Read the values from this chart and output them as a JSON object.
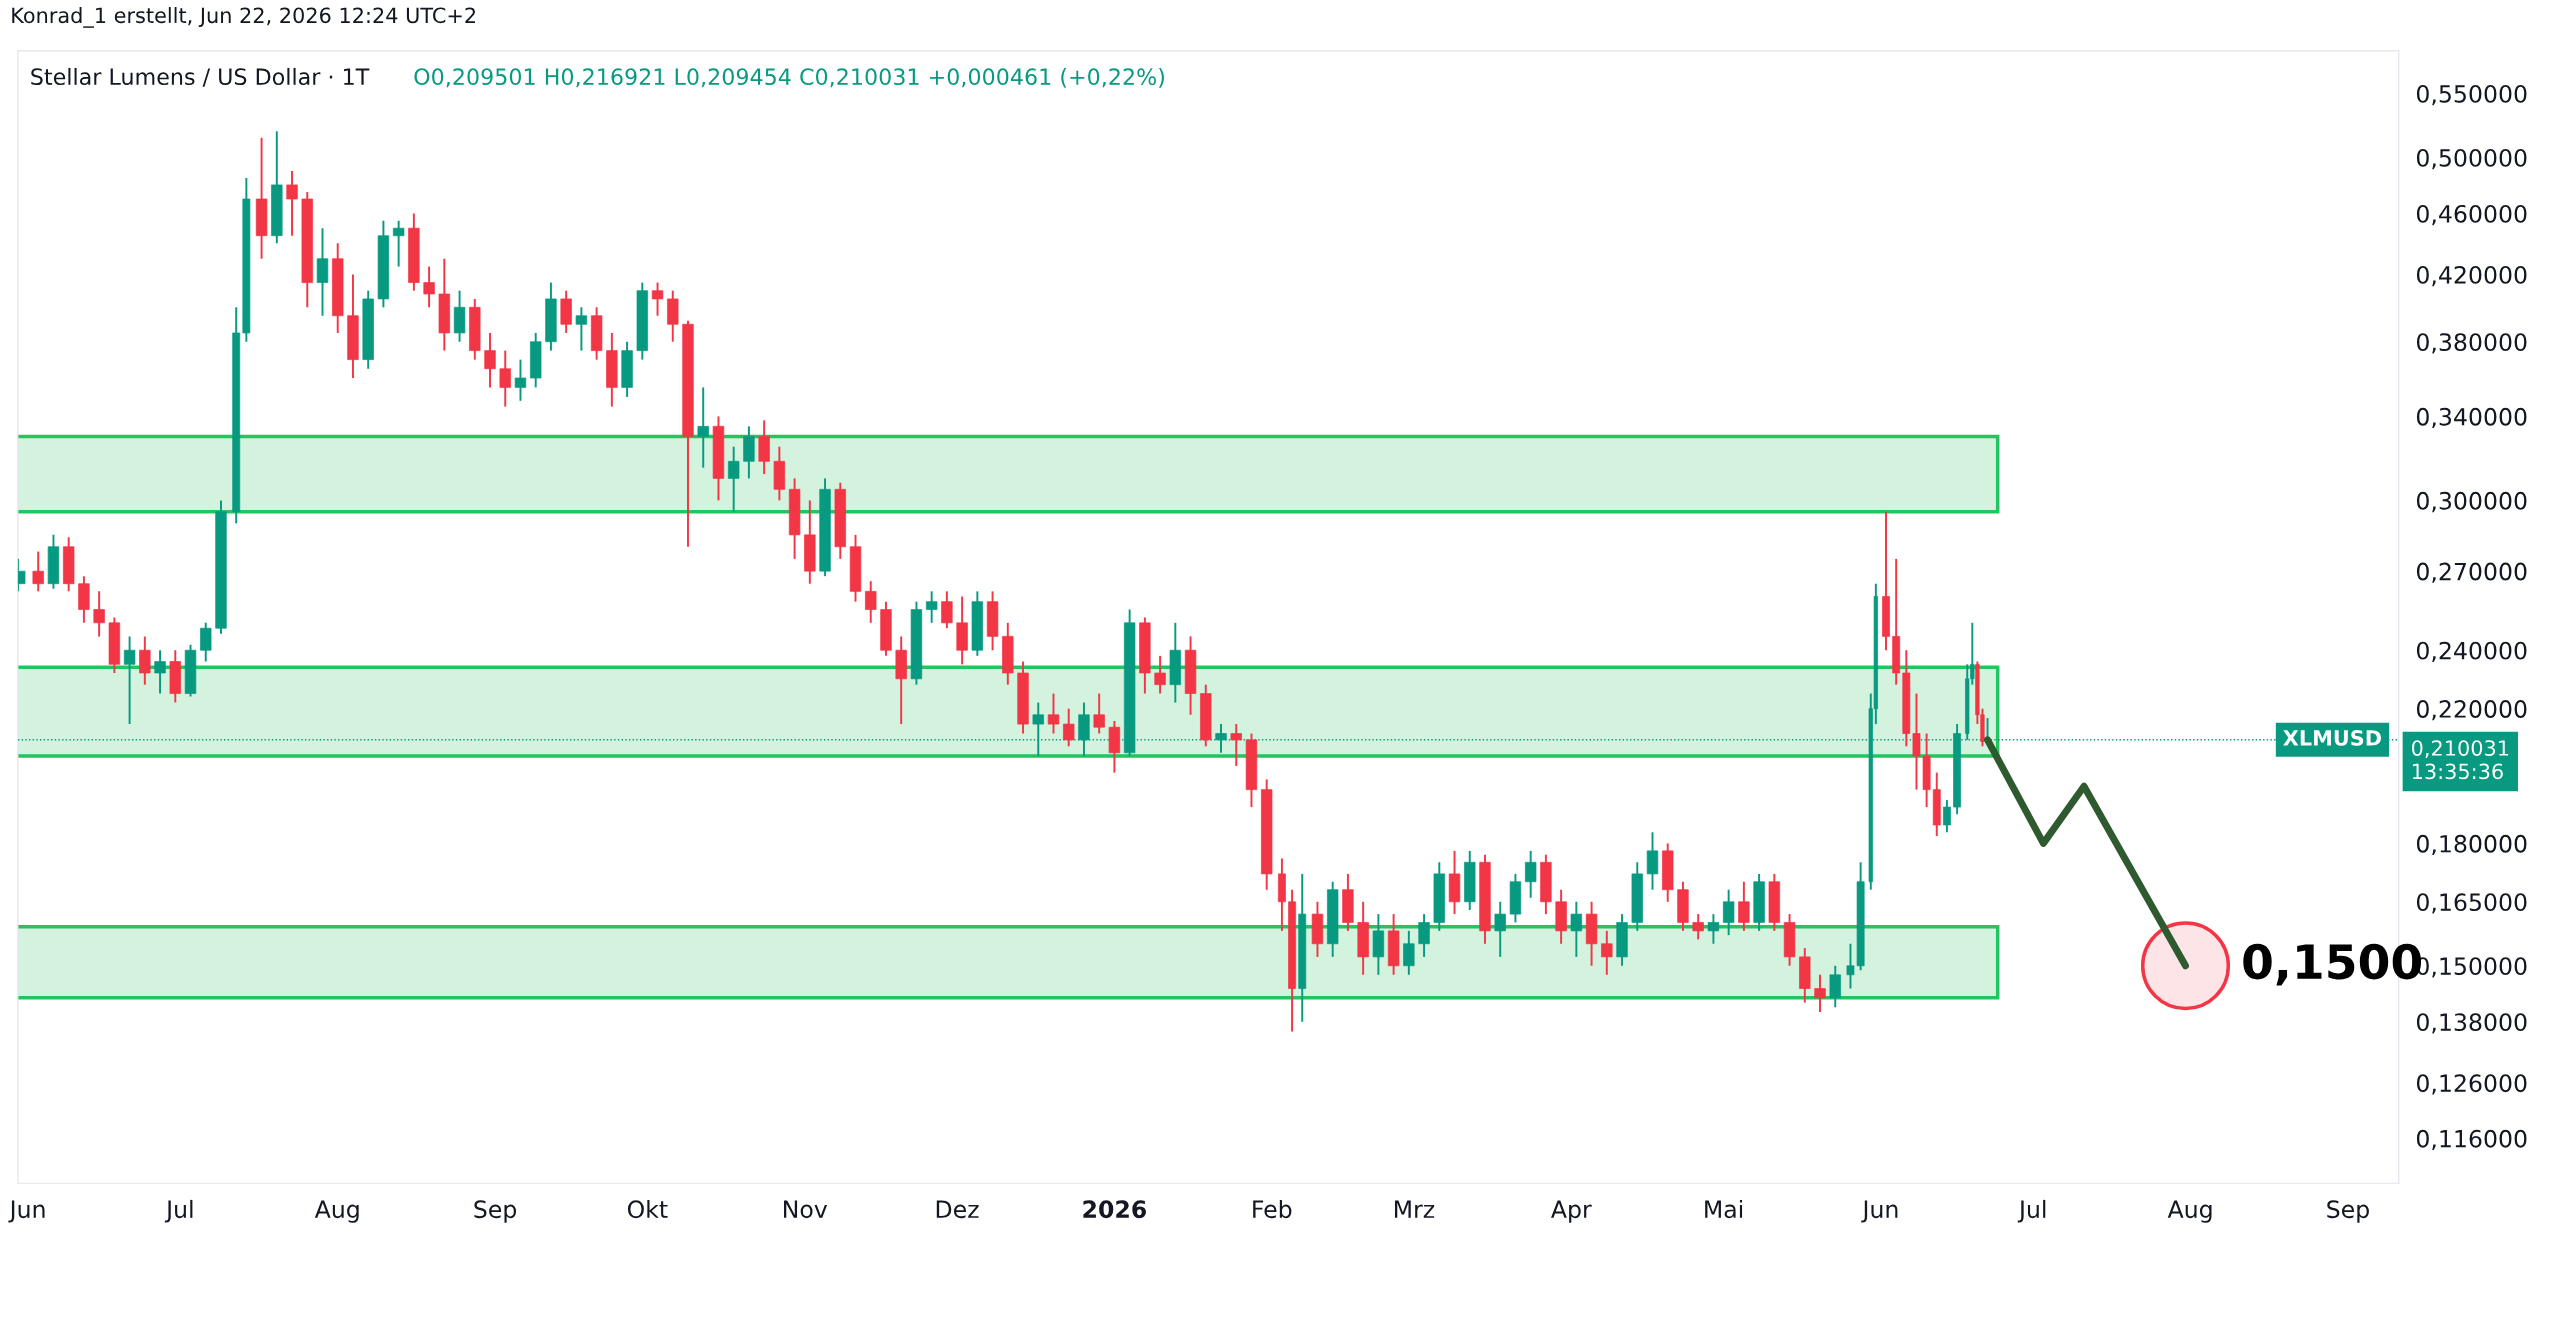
{
  "chart_data": {
    "type": "candlestick",
    "title": "Stellar Lumens / US Dollar · 1T",
    "subtitle": "O0,209501 H0,216921 L0,209454 C0,210031 +0,000461 (+0,22%)",
    "annotations": [
      "Konrad_1 erstellt, Jun 22, 2026 12:24 UTC+2",
      {
        "text": "0,1500",
        "x": "2026-07-31",
        "y": 0.15
      },
      "0,210031\n13:35:36"
    ],
    "log": true,
    "x": [
      "2025-05-30",
      "2025-06-03",
      "2025-06-06",
      "2025-06-09",
      "2025-06-12",
      "2025-06-15",
      "2025-06-18",
      "2025-06-21",
      "2025-06-24",
      "2025-06-27",
      "2025-06-30",
      "2025-07-03",
      "2025-07-06",
      "2025-07-09",
      "2025-07-12",
      "2025-07-14",
      "2025-07-17",
      "2025-07-20",
      "2025-07-23",
      "2025-07-26",
      "2025-07-29",
      "2025-08-01",
      "2025-08-04",
      "2025-08-07",
      "2025-08-10",
      "2025-08-13",
      "2025-08-16",
      "2025-08-19",
      "2025-08-22",
      "2025-08-25",
      "2025-08-28",
      "2025-08-31",
      "2025-09-03",
      "2025-09-06",
      "2025-09-09",
      "2025-09-12",
      "2025-09-15",
      "2025-09-18",
      "2025-09-21",
      "2025-09-24",
      "2025-09-27",
      "2025-09-30",
      "2025-10-03",
      "2025-10-06",
      "2025-10-09",
      "2025-10-12",
      "2025-10-15",
      "2025-10-18",
      "2025-10-21",
      "2025-10-24",
      "2025-10-27",
      "2025-10-30",
      "2025-11-02",
      "2025-11-05",
      "2025-11-08",
      "2025-11-11",
      "2025-11-14",
      "2025-11-17",
      "2025-11-20",
      "2025-11-23",
      "2025-11-26",
      "2025-11-29",
      "2025-12-02",
      "2025-12-05",
      "2025-12-08",
      "2025-12-11",
      "2025-12-14",
      "2025-12-17",
      "2025-12-20",
      "2025-12-23",
      "2025-12-26",
      "2025-12-29",
      "2026-01-01",
      "2026-01-04",
      "2026-01-07",
      "2026-01-10",
      "2026-01-13",
      "2026-01-16",
      "2026-01-19",
      "2026-01-22",
      "2026-01-25",
      "2026-01-28",
      "2026-01-31",
      "2026-02-03",
      "2026-02-05",
      "2026-02-07",
      "2026-02-10",
      "2026-02-13",
      "2026-02-16",
      "2026-02-19",
      "2026-02-22",
      "2026-02-25",
      "2026-02-28",
      "2026-03-03",
      "2026-03-06",
      "2026-03-09",
      "2026-03-12",
      "2026-03-15",
      "2026-03-18",
      "2026-03-21",
      "2026-03-24",
      "2026-03-27",
      "2026-03-30",
      "2026-04-02",
      "2026-04-05",
      "2026-04-08",
      "2026-04-11",
      "2026-04-14",
      "2026-04-17",
      "2026-04-20",
      "2026-04-23",
      "2026-04-26",
      "2026-04-29",
      "2026-05-02",
      "2026-05-05",
      "2026-05-08",
      "2026-05-11",
      "2026-05-14",
      "2026-05-17",
      "2026-05-20",
      "2026-05-23",
      "2026-05-26",
      "2026-05-28",
      "2026-05-30",
      "2026-05-31",
      "2026-06-02",
      "2026-06-04",
      "2026-06-06",
      "2026-06-08",
      "2026-06-10",
      "2026-06-12",
      "2026-06-14",
      "2026-06-16",
      "2026-06-18",
      "2026-06-19",
      "2026-06-20",
      "2026-06-21",
      "2026-06-22"
    ],
    "ohlc": [
      [
        0.265,
        0.275,
        0.262,
        0.27
      ],
      [
        0.27,
        0.278,
        0.262,
        0.265
      ],
      [
        0.265,
        0.285,
        0.263,
        0.28
      ],
      [
        0.28,
        0.284,
        0.262,
        0.265
      ],
      [
        0.265,
        0.268,
        0.25,
        0.255
      ],
      [
        0.255,
        0.262,
        0.245,
        0.25
      ],
      [
        0.25,
        0.252,
        0.232,
        0.235
      ],
      [
        0.235,
        0.245,
        0.215,
        0.24
      ],
      [
        0.24,
        0.245,
        0.228,
        0.232
      ],
      [
        0.232,
        0.24,
        0.225,
        0.236
      ],
      [
        0.236,
        0.24,
        0.222,
        0.225
      ],
      [
        0.225,
        0.242,
        0.224,
        0.24
      ],
      [
        0.24,
        0.25,
        0.236,
        0.248
      ],
      [
        0.248,
        0.3,
        0.246,
        0.295
      ],
      [
        0.295,
        0.4,
        0.29,
        0.385
      ],
      [
        0.385,
        0.485,
        0.38,
        0.47
      ],
      [
        0.47,
        0.515,
        0.43,
        0.445
      ],
      [
        0.445,
        0.52,
        0.44,
        0.48
      ],
      [
        0.48,
        0.49,
        0.445,
        0.47
      ],
      [
        0.47,
        0.475,
        0.4,
        0.415
      ],
      [
        0.415,
        0.45,
        0.395,
        0.43
      ],
      [
        0.43,
        0.44,
        0.385,
        0.395
      ],
      [
        0.395,
        0.42,
        0.36,
        0.37
      ],
      [
        0.37,
        0.41,
        0.365,
        0.405
      ],
      [
        0.405,
        0.455,
        0.4,
        0.445
      ],
      [
        0.445,
        0.455,
        0.425,
        0.45
      ],
      [
        0.45,
        0.46,
        0.41,
        0.415
      ],
      [
        0.415,
        0.425,
        0.4,
        0.408
      ],
      [
        0.408,
        0.43,
        0.375,
        0.385
      ],
      [
        0.385,
        0.41,
        0.38,
        0.4
      ],
      [
        0.4,
        0.405,
        0.37,
        0.375
      ],
      [
        0.375,
        0.385,
        0.355,
        0.365
      ],
      [
        0.365,
        0.375,
        0.345,
        0.355
      ],
      [
        0.355,
        0.37,
        0.348,
        0.36
      ],
      [
        0.36,
        0.385,
        0.355,
        0.38
      ],
      [
        0.38,
        0.415,
        0.375,
        0.405
      ],
      [
        0.405,
        0.41,
        0.385,
        0.39
      ],
      [
        0.39,
        0.4,
        0.375,
        0.395
      ],
      [
        0.395,
        0.4,
        0.37,
        0.375
      ],
      [
        0.375,
        0.385,
        0.345,
        0.355
      ],
      [
        0.355,
        0.38,
        0.35,
        0.375
      ],
      [
        0.375,
        0.415,
        0.37,
        0.41
      ],
      [
        0.41,
        0.415,
        0.395,
        0.405
      ],
      [
        0.405,
        0.41,
        0.38,
        0.39
      ],
      [
        0.39,
        0.392,
        0.28,
        0.33
      ],
      [
        0.33,
        0.355,
        0.315,
        0.335
      ],
      [
        0.335,
        0.34,
        0.3,
        0.31
      ],
      [
        0.31,
        0.325,
        0.295,
        0.318
      ],
      [
        0.318,
        0.335,
        0.31,
        0.33
      ],
      [
        0.33,
        0.338,
        0.312,
        0.318
      ],
      [
        0.318,
        0.325,
        0.3,
        0.305
      ],
      [
        0.305,
        0.31,
        0.275,
        0.285
      ],
      [
        0.285,
        0.3,
        0.265,
        0.27
      ],
      [
        0.27,
        0.31,
        0.268,
        0.305
      ],
      [
        0.305,
        0.308,
        0.275,
        0.28
      ],
      [
        0.28,
        0.285,
        0.258,
        0.262
      ],
      [
        0.262,
        0.266,
        0.25,
        0.255
      ],
      [
        0.255,
        0.258,
        0.238,
        0.24
      ],
      [
        0.24,
        0.245,
        0.215,
        0.23
      ],
      [
        0.23,
        0.258,
        0.228,
        0.255
      ],
      [
        0.255,
        0.262,
        0.25,
        0.258
      ],
      [
        0.258,
        0.262,
        0.248,
        0.25
      ],
      [
        0.25,
        0.26,
        0.235,
        0.24
      ],
      [
        0.24,
        0.262,
        0.238,
        0.258
      ],
      [
        0.258,
        0.262,
        0.24,
        0.245
      ],
      [
        0.245,
        0.25,
        0.228,
        0.232
      ],
      [
        0.232,
        0.236,
        0.212,
        0.215
      ],
      [
        0.215,
        0.222,
        0.205,
        0.218
      ],
      [
        0.218,
        0.225,
        0.212,
        0.215
      ],
      [
        0.215,
        0.22,
        0.208,
        0.21
      ],
      [
        0.21,
        0.222,
        0.205,
        0.218
      ],
      [
        0.218,
        0.225,
        0.212,
        0.214
      ],
      [
        0.214,
        0.216,
        0.2,
        0.206
      ],
      [
        0.206,
        0.255,
        0.205,
        0.25
      ],
      [
        0.25,
        0.252,
        0.225,
        0.232
      ],
      [
        0.232,
        0.238,
        0.225,
        0.228
      ],
      [
        0.228,
        0.25,
        0.222,
        0.24
      ],
      [
        0.24,
        0.245,
        0.218,
        0.225
      ],
      [
        0.225,
        0.228,
        0.208,
        0.21
      ],
      [
        0.21,
        0.215,
        0.206,
        0.212
      ],
      [
        0.212,
        0.215,
        0.202,
        0.21
      ],
      [
        0.21,
        0.212,
        0.19,
        0.195
      ],
      [
        0.195,
        0.198,
        0.168,
        0.172
      ],
      [
        0.172,
        0.176,
        0.158,
        0.165
      ],
      [
        0.165,
        0.168,
        0.136,
        0.145
      ],
      [
        0.145,
        0.172,
        0.138,
        0.162
      ],
      [
        0.162,
        0.165,
        0.152,
        0.155
      ],
      [
        0.155,
        0.17,
        0.152,
        0.168
      ],
      [
        0.168,
        0.172,
        0.158,
        0.16
      ],
      [
        0.16,
        0.165,
        0.148,
        0.152
      ],
      [
        0.152,
        0.162,
        0.148,
        0.158
      ],
      [
        0.158,
        0.162,
        0.148,
        0.15
      ],
      [
        0.15,
        0.158,
        0.148,
        0.155
      ],
      [
        0.155,
        0.162,
        0.152,
        0.16
      ],
      [
        0.16,
        0.175,
        0.158,
        0.172
      ],
      [
        0.172,
        0.178,
        0.162,
        0.165
      ],
      [
        0.165,
        0.178,
        0.163,
        0.175
      ],
      [
        0.175,
        0.177,
        0.155,
        0.158
      ],
      [
        0.158,
        0.165,
        0.152,
        0.162
      ],
      [
        0.162,
        0.172,
        0.16,
        0.17
      ],
      [
        0.17,
        0.178,
        0.166,
        0.175
      ],
      [
        0.175,
        0.177,
        0.162,
        0.165
      ],
      [
        0.165,
        0.168,
        0.155,
        0.158
      ],
      [
        0.158,
        0.165,
        0.152,
        0.162
      ],
      [
        0.162,
        0.165,
        0.15,
        0.155
      ],
      [
        0.155,
        0.158,
        0.148,
        0.152
      ],
      [
        0.152,
        0.162,
        0.15,
        0.16
      ],
      [
        0.16,
        0.175,
        0.158,
        0.172
      ],
      [
        0.172,
        0.183,
        0.168,
        0.178
      ],
      [
        0.178,
        0.18,
        0.165,
        0.168
      ],
      [
        0.168,
        0.17,
        0.158,
        0.16
      ],
      [
        0.16,
        0.162,
        0.156,
        0.158
      ],
      [
        0.158,
        0.162,
        0.155,
        0.16
      ],
      [
        0.16,
        0.168,
        0.157,
        0.165
      ],
      [
        0.165,
        0.17,
        0.158,
        0.16
      ],
      [
        0.16,
        0.172,
        0.158,
        0.17
      ],
      [
        0.17,
        0.172,
        0.158,
        0.16
      ],
      [
        0.16,
        0.162,
        0.15,
        0.152
      ],
      [
        0.152,
        0.154,
        0.142,
        0.145
      ],
      [
        0.145,
        0.148,
        0.14,
        0.143
      ],
      [
        0.143,
        0.15,
        0.141,
        0.148
      ],
      [
        0.148,
        0.155,
        0.145,
        0.15
      ],
      [
        0.15,
        0.175,
        0.149,
        0.17
      ],
      [
        0.17,
        0.225,
        0.168,
        0.22
      ],
      [
        0.22,
        0.265,
        0.215,
        0.26
      ],
      [
        0.26,
        0.295,
        0.24,
        0.245
      ],
      [
        0.245,
        0.275,
        0.228,
        0.232
      ],
      [
        0.232,
        0.24,
        0.208,
        0.212
      ],
      [
        0.212,
        0.225,
        0.195,
        0.205
      ],
      [
        0.205,
        0.212,
        0.19,
        0.195
      ],
      [
        0.195,
        0.2,
        0.182,
        0.185
      ],
      [
        0.185,
        0.192,
        0.183,
        0.19
      ],
      [
        0.19,
        0.215,
        0.188,
        0.212
      ],
      [
        0.212,
        0.235,
        0.21,
        0.23
      ],
      [
        0.23,
        0.25,
        0.228,
        0.235
      ],
      [
        0.235,
        0.236,
        0.215,
        0.218
      ],
      [
        0.218,
        0.22,
        0.208,
        0.2095
      ],
      [
        0.209501,
        0.216921,
        0.209454,
        0.210031
      ]
    ],
    "colors": [
      "#089981",
      "#f23645",
      "#089981",
      "#f23645",
      "#f23645",
      "#f23645",
      "#f23645",
      "#089981",
      "#f23645",
      "#089981",
      "#f23645",
      "#089981",
      "#089981",
      "#089981",
      "#089981",
      "#089981",
      "#f23645",
      "#089981",
      "#f23645",
      "#f23645",
      "#089981",
      "#f23645",
      "#f23645",
      "#089981",
      "#089981",
      "#089981",
      "#f23645",
      "#f23645",
      "#f23645",
      "#089981",
      "#f23645",
      "#f23645",
      "#f23645",
      "#089981",
      "#089981",
      "#089981",
      "#f23645",
      "#089981",
      "#f23645",
      "#f23645",
      "#089981",
      "#089981",
      "#f23645",
      "#f23645",
      "#f23645",
      "#089981",
      "#f23645",
      "#089981",
      "#089981",
      "#f23645",
      "#f23645",
      "#f23645",
      "#f23645",
      "#089981",
      "#f23645",
      "#f23645",
      "#f23645",
      "#f23645",
      "#f23645",
      "#089981",
      "#089981",
      "#f23645",
      "#f23645",
      "#089981",
      "#f23645",
      "#f23645",
      "#f23645",
      "#089981",
      "#f23645",
      "#f23645",
      "#089981",
      "#f23645",
      "#f23645",
      "#089981",
      "#f23645",
      "#f23645",
      "#089981",
      "#f23645",
      "#f23645",
      "#089981",
      "#f23645",
      "#f23645",
      "#f23645",
      "#f23645",
      "#f23645",
      "#089981",
      "#f23645",
      "#089981",
      "#f23645",
      "#f23645",
      "#089981",
      "#f23645",
      "#089981",
      "#089981",
      "#089981",
      "#f23645",
      "#089981",
      "#f23645",
      "#089981",
      "#089981",
      "#089981",
      "#f23645",
      "#f23645",
      "#089981",
      "#f23645",
      "#f23645",
      "#089981",
      "#089981",
      "#089981",
      "#f23645",
      "#f23645",
      "#f23645",
      "#089981",
      "#089981",
      "#f23645",
      "#089981",
      "#f23645",
      "#f23645",
      "#f23645",
      "#f23645",
      "#089981",
      "#089981",
      "#089981",
      "#089981",
      "#089981",
      "#f23645",
      "#f23645",
      "#f23645",
      "#f23645",
      "#f23645",
      "#f23645",
      "#089981",
      "#089981",
      "#089981",
      "#089981",
      "#f23645",
      "#f23645",
      "#089981"
    ],
    "series": [
      {
        "type": "line",
        "color": "#2f5a30",
        "x": [
          "2026-06-22",
          "2026-07-03",
          "2026-07-11",
          "2026-07-31"
        ],
        "values": [
          0.21,
          0.18,
          0.196,
          0.15
        ]
      },
      {
        "type": "scatter",
        "marker": "circle",
        "color": "#f23645",
        "x": [
          "2026-07-31"
        ],
        "values": [
          0.15
        ]
      }
    ],
    "bands": [
      {
        "axis": "y",
        "from": 0.295,
        "to": 0.33,
        "color": "#22c55e"
      },
      {
        "axis": "y",
        "from": 0.205,
        "to": 0.234,
        "color": "#22c55e"
      },
      {
        "axis": "y",
        "from": 0.143,
        "to": 0.159,
        "color": "#22c55e"
      }
    ],
    "ref_lines": [
      {
        "axis": "y",
        "value": 0.210031,
        "label": "XLMUSD",
        "color": "#089981",
        "line_style": "dotted"
      }
    ],
    "xlim": [
      "2025-05-30",
      "2026-09-11"
    ],
    "xticks": [
      {
        "value": "2025-06-01",
        "label": "Jun"
      },
      {
        "value": "2025-07-01",
        "label": "Jul"
      },
      {
        "value": "2025-08-01",
        "label": "Aug"
      },
      {
        "value": "2025-09-01",
        "label": "Sep"
      },
      {
        "value": "2025-10-01",
        "label": "Okt"
      },
      {
        "value": "2025-11-01",
        "label": "Nov"
      },
      {
        "value": "2025-12-01",
        "label": "Dez"
      },
      {
        "value": "2026-01-01",
        "label": "2026"
      },
      {
        "value": "2026-02-01",
        "label": "Feb"
      },
      {
        "value": "2026-03-01",
        "label": "Mrz"
      },
      {
        "value": "2026-04-01",
        "label": "Apr"
      },
      {
        "value": "2026-05-01",
        "label": "Mai"
      },
      {
        "value": "2026-06-01",
        "label": "Jun"
      },
      {
        "value": "2026-07-01",
        "label": "Jul"
      },
      {
        "value": "2026-08-01",
        "label": "Aug"
      },
      {
        "value": "2026-09-01",
        "label": "Sep"
      }
    ],
    "ylim": [
      0.1085,
      0.586
    ],
    "yticks": [
      {
        "value": 0.116,
        "label": "0,116000"
      },
      {
        "value": 0.126,
        "label": "0,126000"
      },
      {
        "value": 0.138,
        "label": "0,138000"
      },
      {
        "value": 0.15,
        "label": "0,150000"
      },
      {
        "value": 0.165,
        "label": "0,165000"
      },
      {
        "value": 0.18,
        "label": "0,180000"
      },
      {
        "value": 0.22,
        "label": "0,220000"
      },
      {
        "value": 0.24,
        "label": "0,240000"
      },
      {
        "value": 0.27,
        "label": "0,270000"
      },
      {
        "value": 0.3,
        "label": "0,300000"
      },
      {
        "value": 0.34,
        "label": "0,340000"
      },
      {
        "value": 0.38,
        "label": "0,380000"
      },
      {
        "value": 0.42,
        "label": "0,420000"
      },
      {
        "value": 0.46,
        "label": "0,460000"
      },
      {
        "value": 0.5,
        "label": "0,500000"
      },
      {
        "value": 0.55,
        "label": "0,550000"
      }
    ]
  }
}
